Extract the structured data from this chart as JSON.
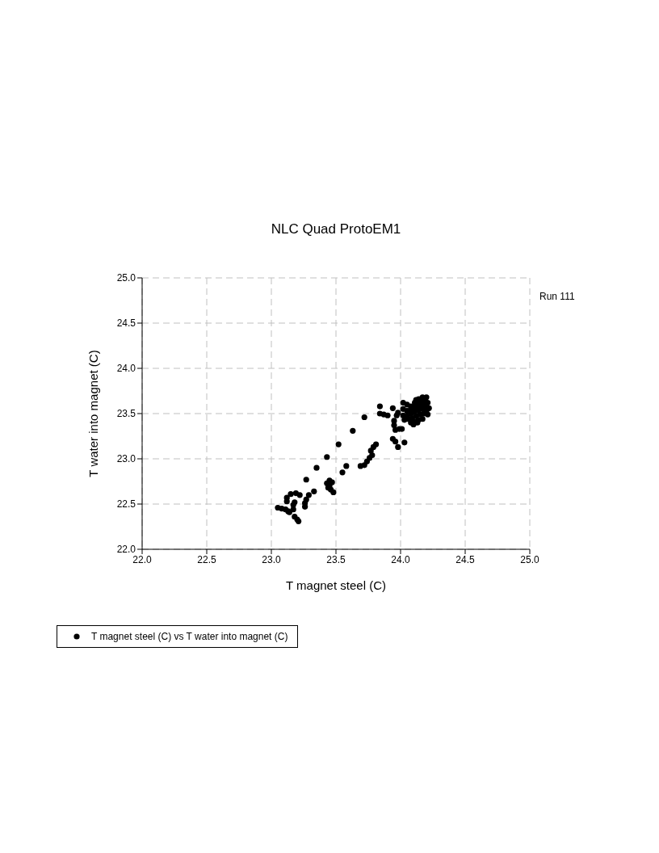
{
  "chart_data": {
    "type": "scatter",
    "title": "NLC Quad ProtoEM1",
    "xlabel": "T magnet steel (C)",
    "ylabel": "T water into magnet (C)",
    "annotations": [
      "Run 111"
    ],
    "xlim": [
      22,
      25
    ],
    "ylim": [
      22,
      25
    ],
    "xticks": [
      {
        "value": 22,
        "label": "22.0"
      },
      {
        "value": 22.5,
        "label": "22.5"
      },
      {
        "value": 23,
        "label": "23.0"
      },
      {
        "value": 23.5,
        "label": "23.5"
      },
      {
        "value": 24,
        "label": "24.0"
      },
      {
        "value": 24.5,
        "label": "24.5"
      },
      {
        "value": 25,
        "label": "25.0"
      }
    ],
    "yticks": [
      {
        "value": 22,
        "label": "22.0"
      },
      {
        "value": 22.5,
        "label": "22.5"
      },
      {
        "value": 23,
        "label": "23.0"
      },
      {
        "value": 23.5,
        "label": "23.5"
      },
      {
        "value": 24,
        "label": "24.0"
      },
      {
        "value": 24.5,
        "label": "24.5"
      },
      {
        "value": 25,
        "label": "25.0"
      }
    ],
    "grid": true,
    "legend": "bottom left",
    "marker": "circle",
    "series": [
      {
        "name": "T magnet steel (C) vs T water into magnet (C)",
        "color": "#000000",
        "x": [
          23.72,
          23.63,
          23.52,
          23.43,
          23.35,
          23.27,
          23.58,
          23.55,
          23.43,
          23.45,
          23.47,
          23.44,
          23.46,
          23.48,
          23.45,
          23.33,
          23.29,
          23.27,
          23.26,
          23.26,
          23.12,
          23.15,
          23.19,
          23.22,
          23.08,
          23.05,
          23.11,
          23.13,
          23.17,
          23.17,
          23.18,
          23.14,
          23.18,
          23.21,
          23.2,
          23.12,
          23.81,
          23.79,
          23.77,
          23.78,
          23.76,
          23.74,
          23.72,
          23.69,
          23.84,
          23.94,
          23.84,
          23.87,
          23.9,
          23.95,
          23.95,
          23.96,
          23.99,
          24.01,
          23.94,
          23.96,
          23.98,
          24.03,
          23.97,
          23.98,
          24.02,
          24.05,
          24.08,
          24.11,
          24.14,
          24.17,
          24.2,
          24.12,
          24.15,
          24.19,
          24.21,
          24.02,
          24.05,
          24.08,
          24.11,
          24.14,
          24.17,
          24.2,
          24.22,
          24.02,
          24.05,
          24.08,
          24.11,
          24.14,
          24.17,
          24.2,
          24.03,
          24.06,
          24.09,
          24.12,
          24.15,
          24.18,
          24.21,
          24.08,
          24.11,
          24.14,
          24.17,
          24.1,
          24.13
        ],
        "values": [
          23.46,
          23.31,
          23.16,
          23.02,
          22.9,
          22.77,
          22.92,
          22.85,
          22.73,
          22.76,
          22.74,
          22.68,
          22.66,
          22.63,
          22.7,
          22.64,
          22.6,
          22.55,
          22.51,
          22.47,
          22.57,
          22.61,
          22.62,
          22.6,
          22.45,
          22.46,
          22.44,
          22.42,
          22.44,
          22.49,
          22.52,
          22.41,
          22.36,
          22.31,
          22.33,
          22.53,
          23.16,
          23.13,
          23.09,
          23.04,
          23.01,
          22.97,
          22.93,
          22.92,
          23.58,
          23.56,
          23.5,
          23.49,
          23.48,
          23.42,
          23.37,
          23.32,
          23.33,
          23.33,
          23.22,
          23.19,
          23.13,
          23.18,
          23.48,
          23.51,
          23.62,
          23.6,
          23.58,
          23.62,
          23.66,
          23.68,
          23.68,
          23.65,
          23.63,
          23.64,
          23.62,
          23.55,
          23.53,
          23.55,
          23.57,
          23.59,
          23.6,
          23.58,
          23.56,
          23.48,
          23.47,
          23.5,
          23.52,
          23.54,
          23.55,
          23.53,
          23.43,
          23.44,
          23.45,
          23.47,
          23.49,
          23.5,
          23.49,
          23.4,
          23.41,
          23.43,
          23.44,
          23.38,
          23.4
        ]
      }
    ]
  }
}
